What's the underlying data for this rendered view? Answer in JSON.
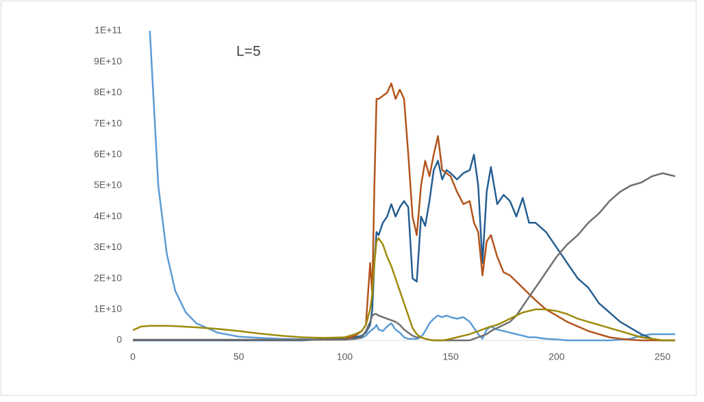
{
  "chart_data": {
    "type": "line",
    "annotation": "L=5",
    "x": [
      0,
      4,
      8,
      12,
      16,
      20,
      25,
      30,
      40,
      50,
      60,
      70,
      80,
      90,
      100,
      105,
      108,
      110,
      112,
      113,
      114,
      115,
      116,
      118,
      120,
      122,
      124,
      126,
      128,
      130,
      132,
      134,
      136,
      138,
      140,
      142,
      144,
      146,
      148,
      150,
      153,
      156,
      159,
      161,
      163,
      165,
      167,
      169,
      172,
      175,
      178,
      181,
      184,
      187,
      190,
      195,
      200,
      205,
      210,
      215,
      220,
      225,
      230,
      235,
      240,
      245,
      250,
      256
    ],
    "series": [
      {
        "color": "#5b9bd5",
        "values": [
          null,
          null,
          100000000000.0,
          50000000000.0,
          28000000000.0,
          16000000000.0,
          9000000000.0,
          5500000000.0,
          2500000000.0,
          1200000000.0,
          800000000.0,
          500000000.0,
          400000000.0,
          300000000.0,
          300000000.0,
          500000000.0,
          800000000.0,
          1500000000.0,
          3000000000.0,
          3500000000.0,
          4000000000.0,
          5000000000.0,
          3500000000.0,
          3000000000.0,
          4500000000.0,
          5500000000.0,
          3500000000.0,
          2500000000.0,
          1000000000.0,
          500000000.0,
          500000000.0,
          500000000.0,
          1000000000.0,
          3000000000.0,
          5500000000.0,
          7000000000.0,
          8000000000.0,
          7500000000.0,
          8000000000.0,
          7500000000.0,
          7000000000.0,
          7500000000.0,
          6000000000.0,
          4000000000.0,
          2000000000.0,
          500000000.0,
          3500000000.0,
          4500000000.0,
          3500000000.0,
          3000000000.0,
          2500000000.0,
          2000000000.0,
          1500000000.0,
          1000000000.0,
          1000000000.0,
          500000000.0,
          300000000.0,
          0,
          0,
          0,
          0,
          0,
          200000000.0,
          500000000.0,
          1500000000.0,
          2000000000.0,
          2000000000.0,
          2000000000.0
        ]
      },
      {
        "color": "#255e91",
        "values": [
          0,
          0,
          0,
          0,
          0,
          0,
          0,
          0,
          0,
          0,
          0,
          0,
          0,
          300000000.0,
          800000000.0,
          1000000000.0,
          1500000000.0,
          2500000000.0,
          5000000000.0,
          10000000000.0,
          25000000000.0,
          35000000000.0,
          34000000000.0,
          38000000000.0,
          40000000000.0,
          44000000000.0,
          40000000000.0,
          43000000000.0,
          45000000000.0,
          43000000000.0,
          20000000000.0,
          19000000000.0,
          40000000000.0,
          37000000000.0,
          45000000000.0,
          55000000000.0,
          58000000000.0,
          52000000000.0,
          55000000000.0,
          54000000000.0,
          52000000000.0,
          54000000000.0,
          55000000000.0,
          60000000000.0,
          50000000000.0,
          25000000000.0,
          48000000000.0,
          56000000000.0,
          44000000000.0,
          47000000000.0,
          45000000000.0,
          40000000000.0,
          46000000000.0,
          38000000000.0,
          38000000000.0,
          35000000000.0,
          30000000000.0,
          25000000000.0,
          20000000000.0,
          17000000000.0,
          12000000000.0,
          9000000000.0,
          6000000000.0,
          4000000000.0,
          2000000000.0,
          500000000.0,
          0,
          0
        ]
      },
      {
        "color": "#b2541b",
        "values": [
          200000000.0,
          200000000.0,
          200000000.0,
          200000000.0,
          200000000.0,
          200000000.0,
          200000000.0,
          200000000.0,
          200000000.0,
          200000000.0,
          200000000.0,
          200000000.0,
          200000000.0,
          200000000.0,
          300000000.0,
          1500000000.0,
          3000000000.0,
          5000000000.0,
          25000000000.0,
          15000000000.0,
          50000000000.0,
          78000000000.0,
          78000000000.0,
          79000000000.0,
          80000000000.0,
          83000000000.0,
          78000000000.0,
          81000000000.0,
          78000000000.0,
          60000000000.0,
          40000000000.0,
          34000000000.0,
          50000000000.0,
          58000000000.0,
          53000000000.0,
          60000000000.0,
          66000000000.0,
          55000000000.0,
          54000000000.0,
          53000000000.0,
          48000000000.0,
          44000000000.0,
          45000000000.0,
          38000000000.0,
          35000000000.0,
          21000000000.0,
          32000000000.0,
          34000000000.0,
          27000000000.0,
          22000000000.0,
          21000000000.0,
          19000000000.0,
          17000000000.0,
          15000000000.0,
          13000000000.0,
          10000000000.0,
          8000000000.0,
          6000000000.0,
          4500000000.0,
          3000000000.0,
          2000000000.0,
          1000000000.0,
          500000000.0,
          200000000.0,
          0,
          0,
          0,
          0
        ]
      },
      {
        "color": "#6f6f6f",
        "values": [
          200000000.0,
          200000000.0,
          200000000.0,
          200000000.0,
          200000000.0,
          200000000.0,
          200000000.0,
          200000000.0,
          200000000.0,
          200000000.0,
          200000000.0,
          200000000.0,
          200000000.0,
          200000000.0,
          200000000.0,
          500000000.0,
          1000000000.0,
          3000000000.0,
          6000000000.0,
          8000000000.0,
          8500000000.0,
          8500000000.0,
          8000000000.0,
          7500000000.0,
          7000000000.0,
          6500000000.0,
          6000000000.0,
          5000000000.0,
          3500000000.0,
          2500000000.0,
          1500000000.0,
          1000000000.0,
          1000000000.0,
          500000000.0,
          200000000.0,
          0,
          0,
          0,
          0,
          0,
          0,
          0,
          0,
          500000000.0,
          1000000000.0,
          1500000000.0,
          2000000000.0,
          3000000000.0,
          4000000000.0,
          5000000000.0,
          6000000000.0,
          8000000000.0,
          11000000000.0,
          14000000000.0,
          17000000000.0,
          22000000000.0,
          27000000000.0,
          31000000000.0,
          34000000000.0,
          38000000000.0,
          41000000000.0,
          45000000000.0,
          48000000000.0,
          50000000000.0,
          51000000000.0,
          53000000000.0,
          54000000000.0,
          53000000000.0
        ]
      },
      {
        "color": "#9e8a0a",
        "values": [
          3300000000.0,
          4500000000.0,
          4700000000.0,
          4700000000.0,
          4700000000.0,
          4600000000.0,
          4400000000.0,
          4200000000.0,
          3700000000.0,
          3000000000.0,
          2200000000.0,
          1500000000.0,
          1000000000.0,
          800000000.0,
          1000000000.0,
          2000000000.0,
          3000000000.0,
          5000000000.0,
          10000000000.0,
          15000000000.0,
          25000000000.0,
          32000000000.0,
          33000000000.0,
          31000000000.0,
          27000000000.0,
          24000000000.0,
          20000000000.0,
          16000000000.0,
          12000000000.0,
          8000000000.0,
          4000000000.0,
          2000000000.0,
          1000000000.0,
          500000000.0,
          200000000.0,
          0,
          0,
          0,
          200000000.0,
          500000000.0,
          1000000000.0,
          1500000000.0,
          2000000000.0,
          2500000000.0,
          3000000000.0,
          3500000000.0,
          4000000000.0,
          4500000000.0,
          5000000000.0,
          6000000000.0,
          7000000000.0,
          8000000000.0,
          9000000000.0,
          9500000000.0,
          10000000000.0,
          10000000000.0,
          9500000000.0,
          8500000000.0,
          7000000000.0,
          6000000000.0,
          5000000000.0,
          4000000000.0,
          3000000000.0,
          2000000000.0,
          1000000000.0,
          500000000.0,
          0,
          0
        ]
      }
    ],
    "xlim": [
      0,
      256
    ],
    "xticks": [
      0,
      50,
      100,
      150,
      200,
      250
    ],
    "ylim": [
      0,
      100000000000.0
    ],
    "yticks": [
      0,
      {
        "value": 10000000000.0,
        "label": "1E+10"
      },
      {
        "value": 20000000000.0,
        "label": "2E+10"
      },
      {
        "value": 30000000000.0,
        "label": "3E+10"
      },
      {
        "value": 40000000000.0,
        "label": "4E+10"
      },
      {
        "value": 50000000000.0,
        "label": "5E+10"
      },
      {
        "value": 60000000000.0,
        "label": "6E+10"
      },
      {
        "value": 70000000000.0,
        "label": "7E+10"
      },
      {
        "value": 80000000000.0,
        "label": "8E+10"
      },
      {
        "value": 90000000000.0,
        "label": "9E+10"
      },
      {
        "value": 100000000000.0,
        "label": "1E+11"
      }
    ],
    "grid": false
  }
}
